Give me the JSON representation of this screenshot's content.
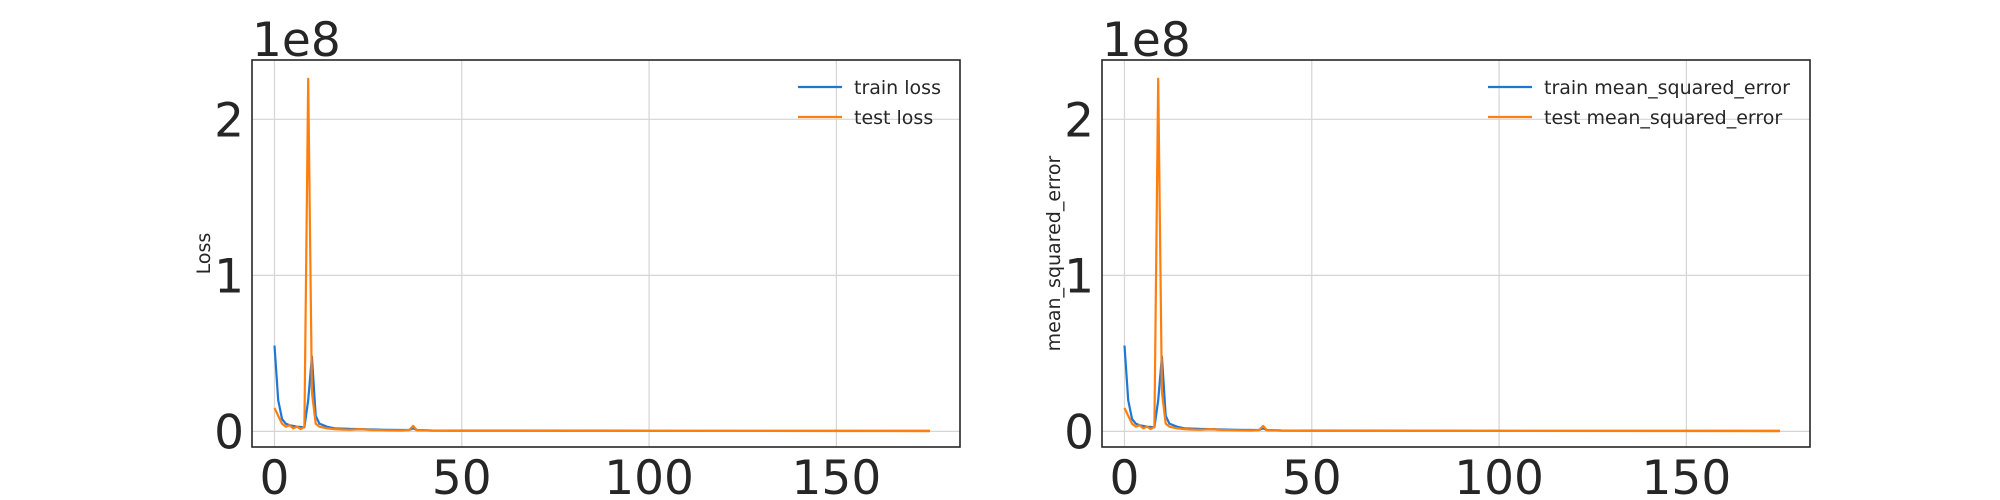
{
  "chart_data": [
    {
      "type": "line",
      "ylabel": "Loss",
      "xlabel": "",
      "exponent_label": "1e8",
      "xlim": [
        -6,
        183
      ],
      "ylim": [
        -10000000,
        238000000
      ],
      "xticks": [
        0,
        50,
        100,
        150
      ],
      "yticks": [
        0,
        100000000,
        200000000
      ],
      "ytick_labels": [
        "0",
        "1",
        "2"
      ],
      "grid": true,
      "legend_position": "top-right",
      "series": [
        {
          "name": "train loss",
          "color": "#1f77d4",
          "x": [
            0,
            1,
            2,
            3,
            4,
            5,
            6,
            7,
            8,
            9,
            10,
            11,
            12,
            14,
            16,
            18,
            20,
            23,
            26,
            30,
            34,
            36,
            37,
            38,
            42,
            50,
            100,
            150,
            175
          ],
          "y": [
            55000000,
            20000000,
            8000000,
            5000000,
            4000000,
            3500000,
            3000000,
            2800000,
            2600000,
            20000000,
            48000000,
            10000000,
            5000000,
            3000000,
            2000000,
            1800000,
            1600000,
            1500000,
            1200000,
            1000000,
            900000,
            1000000,
            2000000,
            900000,
            600000,
            500000,
            400000,
            350000,
            300000
          ]
        },
        {
          "name": "test loss",
          "color": "#ff7f0e",
          "x": [
            0,
            1,
            2,
            3,
            4,
            5,
            6,
            7,
            8,
            9,
            10,
            11,
            12,
            14,
            16,
            18,
            20,
            23,
            26,
            30,
            34,
            36,
            37,
            38,
            42,
            50,
            100,
            150,
            175
          ],
          "y": [
            15000000,
            10000000,
            5000000,
            3000000,
            4000000,
            2000000,
            3000000,
            1500000,
            3000000,
            226000000,
            25000000,
            5000000,
            3000000,
            2000000,
            1500000,
            1200000,
            1000000,
            1500000,
            900000,
            700000,
            600000,
            900000,
            3500000,
            800000,
            500000,
            400000,
            300000,
            250000,
            200000
          ]
        }
      ]
    },
    {
      "type": "line",
      "ylabel": "mean_squared_error",
      "xlabel": "",
      "exponent_label": "1e8",
      "xlim": [
        -6,
        183
      ],
      "ylim": [
        -10000000,
        238000000
      ],
      "xticks": [
        0,
        50,
        100,
        150
      ],
      "yticks": [
        0,
        100000000,
        200000000
      ],
      "ytick_labels": [
        "0",
        "1",
        "2"
      ],
      "grid": true,
      "legend_position": "top-right",
      "series": [
        {
          "name": "train mean_squared_error",
          "color": "#1f77d4",
          "x": [
            0,
            1,
            2,
            3,
            4,
            5,
            6,
            7,
            8,
            9,
            10,
            11,
            12,
            14,
            16,
            18,
            20,
            23,
            26,
            30,
            34,
            36,
            37,
            38,
            42,
            50,
            100,
            150,
            175
          ],
          "y": [
            55000000,
            20000000,
            8000000,
            5000000,
            4000000,
            3500000,
            3000000,
            2800000,
            2600000,
            20000000,
            48000000,
            10000000,
            5000000,
            3000000,
            2000000,
            1800000,
            1600000,
            1500000,
            1200000,
            1000000,
            900000,
            1000000,
            2000000,
            900000,
            600000,
            500000,
            400000,
            350000,
            300000
          ]
        },
        {
          "name": "test mean_squared_error",
          "color": "#ff7f0e",
          "x": [
            0,
            1,
            2,
            3,
            4,
            5,
            6,
            7,
            8,
            9,
            10,
            11,
            12,
            14,
            16,
            18,
            20,
            23,
            26,
            30,
            34,
            36,
            37,
            38,
            42,
            50,
            100,
            150,
            175
          ],
          "y": [
            15000000,
            10000000,
            5000000,
            3000000,
            4000000,
            2000000,
            3000000,
            1500000,
            3000000,
            226000000,
            25000000,
            5000000,
            3000000,
            2000000,
            1500000,
            1200000,
            1000000,
            1500000,
            900000,
            700000,
            600000,
            900000,
            3500000,
            800000,
            500000,
            400000,
            300000,
            250000,
            200000
          ]
        }
      ]
    }
  ]
}
